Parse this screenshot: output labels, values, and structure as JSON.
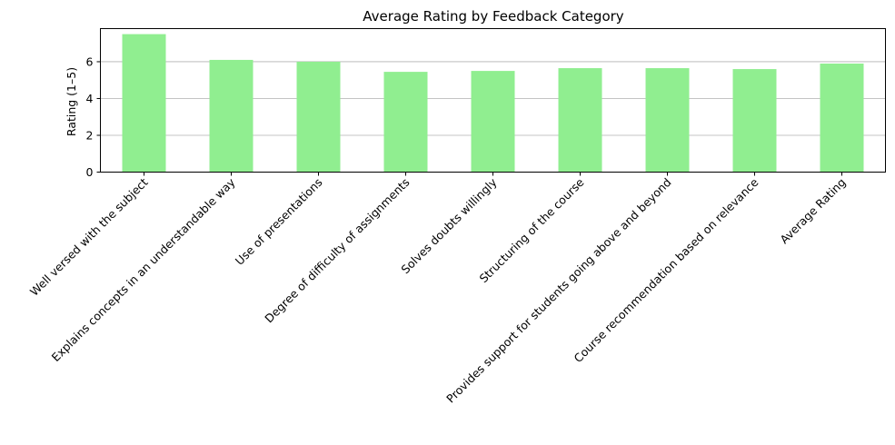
{
  "chart_data": {
    "type": "bar",
    "title": "Average Rating by Feedback Category",
    "xlabel": "",
    "ylabel": "Rating (1–5)",
    "categories": [
      "Well versed with the subject",
      "Explains concepts in an understandable way",
      "Use of presentations",
      "Degree of difficulty of assignments",
      "Solves doubts willingly",
      "Structuring of the course",
      "Provides support for students going above and beyond",
      "Course recommendation based on relevance",
      "Average Rating"
    ],
    "values": [
      7.5,
      6.1,
      6.0,
      5.45,
      5.5,
      5.65,
      5.65,
      5.6,
      5.9
    ],
    "ylim": [
      0,
      7.8
    ],
    "yticks": [
      0,
      2,
      4,
      6
    ],
    "grid": "y",
    "legend": "none",
    "bar_color": "#90ee90"
  }
}
